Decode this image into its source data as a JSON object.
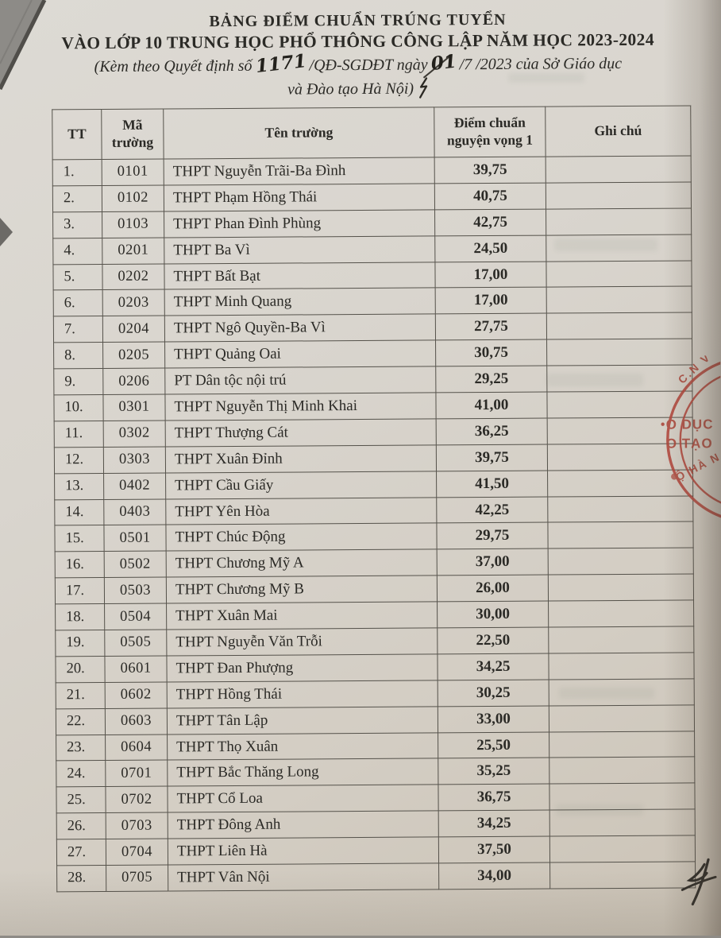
{
  "document": {
    "title_line1": "BẢNG ĐIỂM CHUẨN TRÚNG TUYỂN",
    "title_line2": "VÀO LỚP 10 TRUNG HỌC PHỔ THÔNG CÔNG LẬP NĂM HỌC 2023-2024",
    "decree_prefix": "(Kèm theo Quyết định số",
    "decree_number_handwritten": "1171",
    "decree_mid": "/QĐ-SGDĐT ngày",
    "decree_day_handwritten": "01",
    "decree_suffix": "/7 /2023 của Sở Giáo dục",
    "decree_line2": "và Đào tạo Hà Nội)"
  },
  "table": {
    "headers": {
      "tt": "TT",
      "code": "Mã trường",
      "name": "Tên trường",
      "score": "Điểm chuẩn nguyện vọng 1",
      "note": "Ghi chú"
    },
    "rows": [
      {
        "tt": "1.",
        "code": "0101",
        "name": "THPT Nguyễn Trãi-Ba Đình",
        "score": "39,75",
        "note": ""
      },
      {
        "tt": "2.",
        "code": "0102",
        "name": "THPT Phạm Hồng Thái",
        "score": "40,75",
        "note": ""
      },
      {
        "tt": "3.",
        "code": "0103",
        "name": "THPT Phan Đình Phùng",
        "score": "42,75",
        "note": ""
      },
      {
        "tt": "4.",
        "code": "0201",
        "name": "THPT Ba Vì",
        "score": "24,50",
        "note": ""
      },
      {
        "tt": "5.",
        "code": "0202",
        "name": "THPT Bất Bạt",
        "score": "17,00",
        "note": ""
      },
      {
        "tt": "6.",
        "code": "0203",
        "name": "THPT Minh Quang",
        "score": "17,00",
        "note": ""
      },
      {
        "tt": "7.",
        "code": "0204",
        "name": "THPT Ngô Quyền-Ba Vì",
        "score": "27,75",
        "note": ""
      },
      {
        "tt": "8.",
        "code": "0205",
        "name": "THPT Quảng Oai",
        "score": "30,75",
        "note": ""
      },
      {
        "tt": "9.",
        "code": "0206",
        "name": "PT Dân tộc nội trú",
        "score": "29,25",
        "note": ""
      },
      {
        "tt": "10.",
        "code": "0301",
        "name": "THPT Nguyễn Thị Minh Khai",
        "score": "41,00",
        "note": ""
      },
      {
        "tt": "11.",
        "code": "0302",
        "name": "THPT Thượng Cát",
        "score": "36,25",
        "note": ""
      },
      {
        "tt": "12.",
        "code": "0303",
        "name": "THPT Xuân Đỉnh",
        "score": "39,75",
        "note": ""
      },
      {
        "tt": "13.",
        "code": "0402",
        "name": "THPT Cầu Giấy",
        "score": "41,50",
        "note": ""
      },
      {
        "tt": "14.",
        "code": "0403",
        "name": "THPT Yên Hòa",
        "score": "42,25",
        "note": ""
      },
      {
        "tt": "15.",
        "code": "0501",
        "name": "THPT Chúc Động",
        "score": "29,75",
        "note": ""
      },
      {
        "tt": "16.",
        "code": "0502",
        "name": "THPT Chương Mỹ A",
        "score": "37,00",
        "note": ""
      },
      {
        "tt": "17.",
        "code": "0503",
        "name": "THPT Chương Mỹ B",
        "score": "26,00",
        "note": ""
      },
      {
        "tt": "18.",
        "code": "0504",
        "name": "THPT Xuân Mai",
        "score": "30,00",
        "note": ""
      },
      {
        "tt": "19.",
        "code": "0505",
        "name": "THPT Nguyễn Văn Trỗi",
        "score": "22,50",
        "note": ""
      },
      {
        "tt": "20.",
        "code": "0601",
        "name": "THPT Đan Phượng",
        "score": "34,25",
        "note": ""
      },
      {
        "tt": "21.",
        "code": "0602",
        "name": "THPT Hồng Thái",
        "score": "30,25",
        "note": ""
      },
      {
        "tt": "22.",
        "code": "0603",
        "name": "THPT Tân Lập",
        "score": "33,00",
        "note": ""
      },
      {
        "tt": "23.",
        "code": "0604",
        "name": "THPT Thọ Xuân",
        "score": "25,50",
        "note": ""
      },
      {
        "tt": "24.",
        "code": "0701",
        "name": "THPT Bắc Thăng Long",
        "score": "35,25",
        "note": ""
      },
      {
        "tt": "25.",
        "code": "0702",
        "name": "THPT Cổ Loa",
        "score": "36,75",
        "note": ""
      },
      {
        "tt": "26.",
        "code": "0703",
        "name": "THPT Đông Anh",
        "score": "34,25",
        "note": ""
      },
      {
        "tt": "27.",
        "code": "0704",
        "name": "THPT Liên Hà",
        "score": "37,50",
        "note": ""
      },
      {
        "tt": "28.",
        "code": "0705",
        "name": "THPT Vân Nội",
        "score": "34,00",
        "note": ""
      }
    ]
  },
  "stamp": {
    "arc_top": "C.N V",
    "line1": "O DỤC",
    "line2": "O TẠO",
    "arc_bottom": "Ộ HÀ N",
    "color": "#b2463c"
  },
  "colors": {
    "paper": "#d8d4cd",
    "ink": "#2b2a26",
    "stamp_red": "#b2463c"
  }
}
